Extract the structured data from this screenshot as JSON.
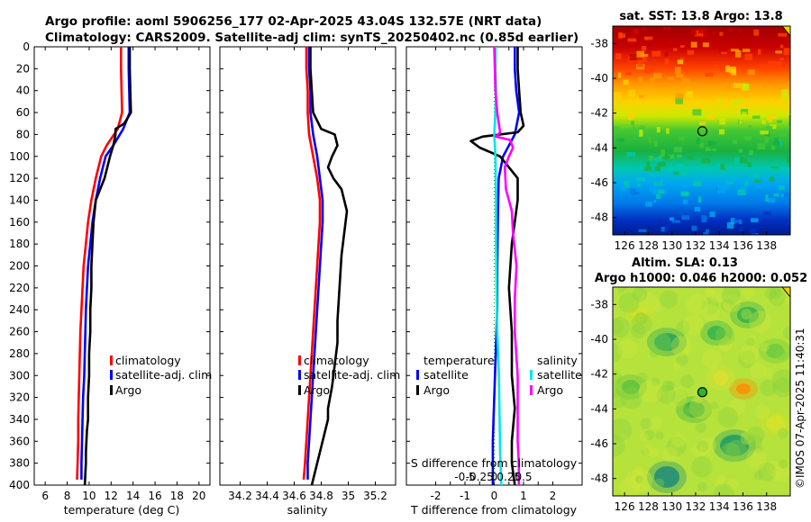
{
  "header": {
    "line1": "Argo profile: aoml 5906256_177 02-Apr-2025 43.04S 132.57E (NRT data)",
    "line2": "Climatology: CARS2009. Satellite-adj clim: synTS_20250402.nc (0.85d earlier)"
  },
  "credit": "©IMOS 07-Apr-2025 11:40:31",
  "colors": {
    "climatology": "#ff0000",
    "satellite": "#0000ff",
    "argo": "#000000",
    "sal_sat": "#00e5ee",
    "sal_argo": "#ff00ff"
  },
  "chart_data": [
    {
      "type": "line",
      "name": "temperature-profile",
      "title": "",
      "xlabel": "temperature (deg C)",
      "ylabel": "",
      "xlim": [
        5,
        21
      ],
      "ylim": [
        400,
        0
      ],
      "xticks": [
        "6",
        "8",
        "10",
        "12",
        "14",
        "16",
        "18",
        "20"
      ],
      "xtick_values": [
        6,
        8,
        10,
        12,
        14,
        16,
        18,
        20
      ],
      "yticks": [
        "0",
        "20",
        "40",
        "60",
        "80",
        "100",
        "120",
        "140",
        "160",
        "180",
        "200",
        "220",
        "240",
        "260",
        "280",
        "300",
        "320",
        "340",
        "360",
        "380",
        "400"
      ],
      "legend": [
        "climatology",
        "satellite-adj. clim",
        "Argo"
      ],
      "series": [
        {
          "name": "climatology",
          "color": "#ff0000",
          "x": [
            12.9,
            12.9,
            12.95,
            13.0,
            12.6,
            11.6,
            11.1,
            10.6,
            10.2,
            9.9,
            9.7,
            9.5,
            9.4,
            9.3,
            9.2,
            9.15,
            9.1,
            9.05,
            9.0,
            9.0,
            8.95,
            8.9
          ],
          "depth": [
            0,
            20,
            40,
            60,
            75,
            90,
            100,
            120,
            140,
            160,
            180,
            200,
            220,
            240,
            260,
            280,
            300,
            320,
            340,
            360,
            380,
            395
          ]
        },
        {
          "name": "satellite-adj. clim",
          "color": "#0000ff",
          "x": [
            13.6,
            13.6,
            13.65,
            13.7,
            13.1,
            12.2,
            11.5,
            11.0,
            10.6,
            10.3,
            10.1,
            9.9,
            9.8,
            9.7,
            9.65,
            9.6,
            9.55,
            9.45,
            9.4,
            9.35,
            9.3,
            9.3
          ],
          "depth": [
            0,
            20,
            40,
            60,
            75,
            90,
            100,
            120,
            140,
            160,
            180,
            200,
            220,
            240,
            260,
            280,
            300,
            320,
            340,
            360,
            380,
            395
          ]
        },
        {
          "name": "Argo",
          "color": "#000000",
          "x": [
            13.7,
            13.7,
            13.75,
            13.8,
            13.2,
            12.4,
            12.4,
            12.2,
            11.9,
            11.4,
            10.6,
            10.4,
            10.3,
            10.2,
            10.2,
            10.1,
            10.1,
            10.0,
            10.0,
            9.9,
            9.9,
            9.8,
            9.75,
            9.7,
            9.7,
            9.65,
            9.6
          ],
          "depth": [
            0,
            20,
            40,
            60,
            70,
            75,
            80,
            90,
            100,
            120,
            140,
            160,
            180,
            200,
            220,
            240,
            260,
            280,
            300,
            320,
            340,
            350,
            360,
            370,
            380,
            390,
            400
          ]
        }
      ]
    },
    {
      "type": "line",
      "name": "salinity-profile",
      "title": "",
      "xlabel": "salinity",
      "ylabel": "",
      "xlim": [
        34.05,
        35.35
      ],
      "ylim": [
        400,
        0
      ],
      "xticks": [
        "34.2",
        "34.4",
        "34.6",
        "34.8",
        "35",
        "35.2"
      ],
      "xtick_values": [
        34.2,
        34.4,
        34.6,
        34.8,
        35.0,
        35.2
      ],
      "legend": [
        "climatology",
        "satellite-adj. clim",
        "Argo"
      ],
      "series": [
        {
          "name": "climatology",
          "color": "#ff0000",
          "x": [
            34.69,
            34.69,
            34.7,
            34.7,
            34.71,
            34.74,
            34.77,
            34.79,
            34.79,
            34.78,
            34.77,
            34.76,
            34.75,
            34.74,
            34.73,
            34.72,
            34.71,
            34.7,
            34.69,
            34.68,
            34.67
          ],
          "depth": [
            0,
            20,
            40,
            60,
            80,
            100,
            120,
            140,
            160,
            180,
            200,
            220,
            240,
            260,
            280,
            300,
            320,
            340,
            360,
            380,
            395
          ]
        },
        {
          "name": "satellite-adj. clim",
          "color": "#0000ff",
          "x": [
            34.71,
            34.71,
            34.72,
            34.72,
            34.74,
            34.77,
            34.79,
            34.81,
            34.81,
            34.8,
            34.79,
            34.78,
            34.77,
            34.76,
            34.75,
            34.74,
            34.73,
            34.72,
            34.71,
            34.7,
            34.7
          ],
          "depth": [
            0,
            20,
            40,
            60,
            80,
            100,
            120,
            140,
            160,
            180,
            200,
            220,
            240,
            260,
            280,
            300,
            320,
            340,
            360,
            380,
            395
          ]
        },
        {
          "name": "Argo",
          "color": "#000000",
          "x": [
            34.72,
            34.72,
            34.73,
            34.74,
            34.8,
            34.9,
            34.92,
            34.88,
            34.85,
            34.89,
            34.95,
            34.99,
            34.97,
            34.95,
            34.94,
            34.93,
            34.92,
            34.92,
            34.9,
            34.88,
            34.85,
            34.85,
            34.83,
            34.81,
            34.79,
            34.77,
            34.75,
            34.73
          ],
          "depth": [
            0,
            20,
            40,
            60,
            75,
            80,
            90,
            100,
            110,
            120,
            130,
            150,
            170,
            190,
            210,
            230,
            250,
            270,
            290,
            310,
            330,
            340,
            350,
            360,
            370,
            380,
            390,
            400
          ]
        }
      ]
    },
    {
      "type": "line",
      "name": "difference-profile",
      "title": "",
      "xlabel": "T difference from climatology",
      "xlabel_top": "S difference from climatology",
      "ylabel": "",
      "xlim": [
        -3,
        3
      ],
      "ylim": [
        400,
        0
      ],
      "xticks": [
        "-2",
        "-1.5",
        "-1",
        "-0.5",
        "0",
        "0.5",
        "1",
        "1.5",
        "2"
      ],
      "xtick_values": [
        -2,
        -1.5,
        -1,
        -0.5,
        0,
        0.5,
        1,
        1.5,
        2
      ],
      "s_ticks": [
        "-0.5",
        "-0.25",
        "0",
        "0.25",
        "0.5"
      ],
      "s_tick_values": [
        -0.5,
        -0.25,
        0,
        0.25,
        0.5
      ],
      "legend_temperature": {
        "heading": "temperature",
        "items": [
          "satellite",
          "Argo"
        ]
      },
      "legend_salinity": {
        "heading": "salinity",
        "items": [
          "satellite",
          "Argo"
        ]
      },
      "series": [
        {
          "name": "temperature satellite",
          "color": "#0000ff",
          "x": [
            0.7,
            0.7,
            0.75,
            0.85,
            0.7,
            0.3,
            0.15,
            0.12,
            0.1,
            0.1,
            0.05,
            0.0,
            -0.05,
            -0.05
          ],
          "depth": [
            0,
            20,
            40,
            60,
            80,
            100,
            120,
            160,
            200,
            240,
            280,
            320,
            360,
            400
          ]
        },
        {
          "name": "temperature Argo",
          "color": "#000000",
          "x": [
            0.8,
            0.8,
            0.85,
            0.9,
            1.0,
            0.8,
            -0.4,
            -0.8,
            -0.5,
            0.2,
            0.5,
            0.8,
            0.8,
            0.6,
            0.5,
            0.6,
            0.6,
            0.7,
            0.6,
            0.6,
            0.7
          ],
          "depth": [
            0,
            20,
            40,
            60,
            72,
            78,
            82,
            86,
            92,
            100,
            110,
            120,
            140,
            180,
            220,
            260,
            300,
            330,
            360,
            380,
            400
          ]
        },
        {
          "name": "salinity satellite",
          "color": "#00e5ee",
          "x": [
            0.02,
            0.02,
            0.03,
            0.02,
            0.0,
            0.02,
            0.03,
            0.03,
            0.04,
            0.05,
            0.08,
            0.09,
            0.1,
            0.12
          ],
          "depth": [
            0,
            20,
            40,
            60,
            80,
            100,
            140,
            180,
            220,
            260,
            300,
            340,
            370,
            400
          ]
        },
        {
          "name": "salinity Argo",
          "color": "#ff00ff",
          "x": [
            0.0,
            0.02,
            0.05,
            0.1,
            0.03,
            0.27,
            0.32,
            0.25,
            0.18,
            0.2,
            0.3,
            0.32,
            0.38,
            0.35,
            0.35,
            0.4,
            0.4,
            0.4,
            0.42,
            0.42
          ],
          "depth": [
            0,
            40,
            60,
            78,
            82,
            85,
            92,
            100,
            110,
            130,
            150,
            170,
            200,
            230,
            260,
            300,
            330,
            360,
            380,
            400
          ]
        }
      ]
    },
    {
      "type": "heatmap",
      "name": "sst-map",
      "title": "sat. SST: 13.8 Argo: 13.8",
      "xlim": [
        125,
        140
      ],
      "ylim": [
        -49,
        -37
      ],
      "xticks": [
        "126",
        "128",
        "130",
        "132",
        "134",
        "136",
        "138"
      ],
      "xtick_values": [
        126,
        128,
        130,
        132,
        134,
        136,
        138
      ],
      "yticks": [
        "-38",
        "-40",
        "-42",
        "-44",
        "-46",
        "-48"
      ],
      "ytick_values": [
        -38,
        -40,
        -42,
        -44,
        -46,
        -48
      ],
      "float_position": {
        "lon": 132.57,
        "lat": -43.04
      }
    },
    {
      "type": "heatmap",
      "name": "sla-map",
      "title": "Altim. SLA: 0.13",
      "title2": "Argo h1000: 0.046 h2000: 0.052",
      "xlim": [
        125,
        140
      ],
      "ylim": [
        -49,
        -37
      ],
      "xticks": [
        "126",
        "128",
        "130",
        "132",
        "134",
        "136",
        "138"
      ],
      "xtick_values": [
        126,
        128,
        130,
        132,
        134,
        136,
        138
      ],
      "yticks": [
        "-38",
        "-40",
        "-42",
        "-44",
        "-46",
        "-48"
      ],
      "ytick_values": [
        -38,
        -40,
        -42,
        -44,
        -46,
        -48
      ],
      "float_position": {
        "lon": 132.57,
        "lat": -43.04
      }
    }
  ]
}
